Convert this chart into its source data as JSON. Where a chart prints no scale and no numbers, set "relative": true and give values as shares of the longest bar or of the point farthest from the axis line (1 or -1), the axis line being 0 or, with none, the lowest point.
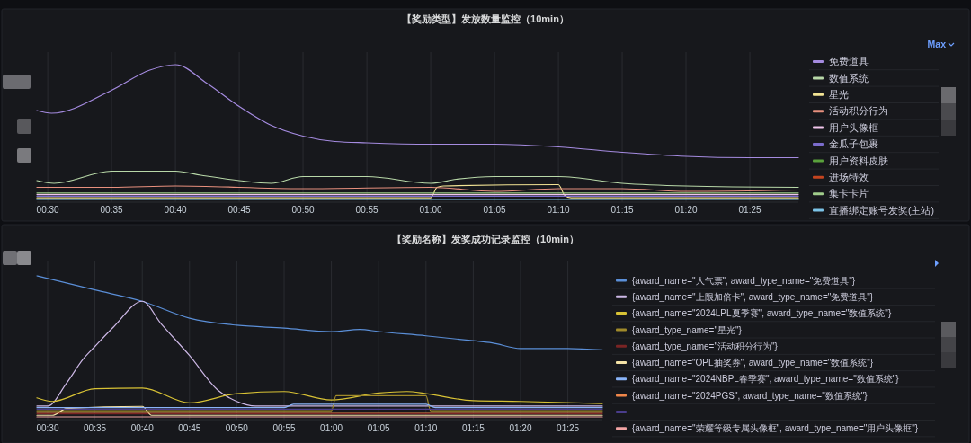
{
  "chart_data": [
    {
      "type": "line",
      "title": "【奖励类型】发放数量监控（10min）",
      "relative": true,
      "grid": "x",
      "legend": "right",
      "annotations": [
        "Max"
      ],
      "xlim": [
        0.4858,
        1.48
      ],
      "xticks": [
        {
          "value": 0.5,
          "label": "00:30"
        },
        {
          "value": 0.5833,
          "label": "00:35"
        },
        {
          "value": 0.6667,
          "label": "00:40"
        },
        {
          "value": 0.75,
          "label": "00:45"
        },
        {
          "value": 0.8333,
          "label": "00:50"
        },
        {
          "value": 0.9167,
          "label": "00:55"
        },
        {
          "value": 1,
          "label": "01:00"
        },
        {
          "value": 1.0833,
          "label": "01:05"
        },
        {
          "value": 1.1667,
          "label": "01:10"
        },
        {
          "value": 1.25,
          "label": "01:15"
        },
        {
          "value": 1.3333,
          "label": "01:20"
        },
        {
          "value": 1.4167,
          "label": "01:25"
        }
      ],
      "series": [
        {
          "name": "免费道具",
          "color": "#a58be0",
          "x": [
            0.4858,
            0.505,
            0.5833,
            0.6333,
            0.6667,
            0.7083,
            0.75,
            0.7917,
            0.8333,
            0.875,
            0.9167,
            1.0,
            1.0833,
            1.1667,
            1.25,
            1.3333,
            1.4167,
            1.48
          ],
          "values": [
            0.66,
            0.64,
            0.81,
            0.96,
            1.0,
            0.86,
            0.69,
            0.55,
            0.47,
            0.43,
            0.42,
            0.41,
            0.41,
            0.39,
            0.35,
            0.32,
            0.31,
            0.31
          ]
        },
        {
          "name": "数值系统",
          "color": "#b8d8a8",
          "x": [
            0.4858,
            0.5083,
            0.5833,
            0.6667,
            0.7,
            0.75,
            0.7917,
            0.8333,
            0.9167,
            1.0,
            1.0333,
            1.0833,
            1.1667,
            1.25,
            1.3333,
            1.48
          ],
          "values": [
            0.14,
            0.12,
            0.21,
            0.21,
            0.18,
            0.14,
            0.12,
            0.17,
            0.17,
            0.12,
            0.15,
            0.17,
            0.17,
            0.12,
            0.1,
            0.09
          ]
        },
        {
          "name": "星光",
          "color": "#f2e394",
          "x": [
            0.4858,
            1.0,
            1.0083,
            1.0167,
            1.1667,
            1.175,
            1.1833,
            1.48
          ],
          "values": [
            0.012,
            0.012,
            0.09,
            0.1,
            0.11,
            0.03,
            0.012,
            0.012
          ]
        },
        {
          "name": "活动积分行为",
          "color": "#e8907e",
          "x": [
            0.4858,
            0.5833,
            0.6667,
            0.8333,
            1.0,
            1.0833,
            1.1667,
            1.25,
            1.3333,
            1.48
          ],
          "values": [
            0.09,
            0.09,
            0.1,
            0.08,
            0.09,
            0.06,
            0.08,
            0.08,
            0.06,
            0.07
          ]
        },
        {
          "name": "用户头像框",
          "color": "#f2c6ec",
          "x": [
            0.4858,
            1.48
          ],
          "values": [
            0.036,
            0.036
          ]
        },
        {
          "name": "金瓜子包裹",
          "color": "#7b6ccc",
          "x": [
            0.4858,
            1.48
          ],
          "values": [
            0.024,
            0.024
          ]
        },
        {
          "name": "用户资料皮肤",
          "color": "#5aa13c",
          "values": [
            null
          ]
        },
        {
          "name": "进场特效",
          "color": "#c4441f",
          "values": [
            null
          ]
        },
        {
          "name": "集卡卡片",
          "color": "#a0cc8a",
          "x": [
            0.4858,
            1.48
          ],
          "values": [
            0.048,
            0.048
          ]
        },
        {
          "name": "直播绑定账号发奖(主站)",
          "color": "#7cc4e8",
          "x": [
            0.4858,
            1.48
          ],
          "values": [
            0,
            0
          ]
        }
      ]
    },
    {
      "type": "line",
      "title": "【奖励名称】发奖成功记录监控（10min）",
      "relative": true,
      "grid": "x",
      "legend": "right",
      "xlim": [
        0.481,
        1.4775
      ],
      "xticks": [
        {
          "value": 0.5,
          "label": "00:30"
        },
        {
          "value": 0.5833,
          "label": "00:35"
        },
        {
          "value": 0.6667,
          "label": "00:40"
        },
        {
          "value": 0.75,
          "label": "00:45"
        },
        {
          "value": 0.8333,
          "label": "00:50"
        },
        {
          "value": 0.9167,
          "label": "00:55"
        },
        {
          "value": 1,
          "label": "01:00"
        },
        {
          "value": 1.0833,
          "label": "01:05"
        },
        {
          "value": 1.1667,
          "label": "01:10"
        },
        {
          "value": 1.25,
          "label": "01:15"
        },
        {
          "value": 1.3333,
          "label": "01:20"
        },
        {
          "value": 1.4167,
          "label": "01:25"
        }
      ],
      "series": [
        {
          "name": "{award_name=\"人气票\", award_type_name=\"免费道具\"}",
          "color": "#5b8fd8",
          "x": [
            0.481,
            0.5833,
            0.6667,
            0.75,
            0.8333,
            0.9167,
            1.0,
            1.05,
            1.0833,
            1.1667,
            1.25,
            1.2833,
            1.3333,
            1.4167,
            1.4775
          ],
          "values": [
            1.0,
            0.9,
            0.82,
            0.7,
            0.65,
            0.63,
            0.605,
            0.62,
            0.605,
            0.575,
            0.54,
            0.525,
            0.485,
            0.485,
            0.475
          ]
        },
        {
          "name": "{award_name=\"上限加倍卡\", award_type_name=\"免费道具\"}",
          "color": "#cdb8e6",
          "x": [
            0.481,
            0.5,
            0.5333,
            0.5625,
            0.5833,
            0.6167,
            0.6667,
            0.7,
            0.75,
            0.8,
            0.8333,
            0.8667,
            1.0,
            1.25,
            1.4775
          ],
          "values": [
            0.077,
            0.077,
            0.24,
            0.41,
            0.5,
            0.64,
            0.82,
            0.66,
            0.435,
            0.19,
            0.11,
            0.077,
            0.077,
            0.077,
            0.077
          ]
        },
        {
          "name": "{award_name=\"2024LPL夏季赛\", award_type_name=\"数值系统\"}",
          "color": "#d8c235",
          "x": [
            0.481,
            0.5083,
            0.5833,
            0.6667,
            0.75,
            0.8333,
            0.9167,
            1.0,
            1.0833,
            1.1333,
            1.1667,
            1.25,
            1.3333,
            1.4775
          ],
          "values": [
            0.135,
            0.11,
            0.2,
            0.205,
            0.1,
            0.165,
            0.18,
            0.12,
            0.17,
            0.18,
            0.165,
            0.115,
            0.11,
            0.095
          ]
        },
        {
          "name": "{award_type_name=\"星光\"}",
          "color": "#a08a2a",
          "x": [
            0.481,
            1.0,
            1.0083,
            1.1667,
            1.175,
            1.4775
          ],
          "values": [
            0.044,
            0.044,
            0.15,
            0.15,
            0.044,
            0.044
          ]
        },
        {
          "name": "{award_type_name=\"活动积分行为\"}",
          "color": "#7a2424",
          "x": [
            0.481,
            1.4775
          ],
          "values": [
            0.022,
            0.022
          ]
        },
        {
          "name": "{award_name=\"OPL抽奖券\", award_type_name=\"数值系统\"}",
          "color": "#f4e2a6",
          "x": [
            0.481,
            0.5083,
            0.5333,
            0.6667,
            0.6833,
            1.4775
          ],
          "values": [
            0.011,
            0.011,
            0.06,
            0.075,
            0.011,
            0.011
          ]
        },
        {
          "name": "{award_name=\"2024NBPL春季赛\", award_type_name=\"数值系统\"}",
          "color": "#8ab4f8",
          "x": [
            0.481,
            0.9167,
            0.9333,
            1.1667,
            1.1833,
            1.4775
          ],
          "values": [
            0.066,
            0.066,
            0.09,
            0.09,
            0.066,
            0.066
          ]
        },
        {
          "name": "{award_name=\"2024PGS\", award_type_name=\"数值系统\"}",
          "color": "#f0874a",
          "x": [
            0.481,
            1.4775
          ],
          "values": [
            0.033,
            0.033
          ]
        },
        {
          "color": "#4a3d8c",
          "x": [
            0.481,
            1.4775
          ],
          "values": [
            0.055,
            0.055
          ]
        },
        {
          "name": "{award_name=\"荣耀等级专属头像框\", award_type_name=\"用户头像框\"}",
          "color": "#f2a4a4",
          "x": [
            0.481,
            1.4775
          ],
          "values": [
            0,
            0
          ]
        }
      ]
    }
  ]
}
